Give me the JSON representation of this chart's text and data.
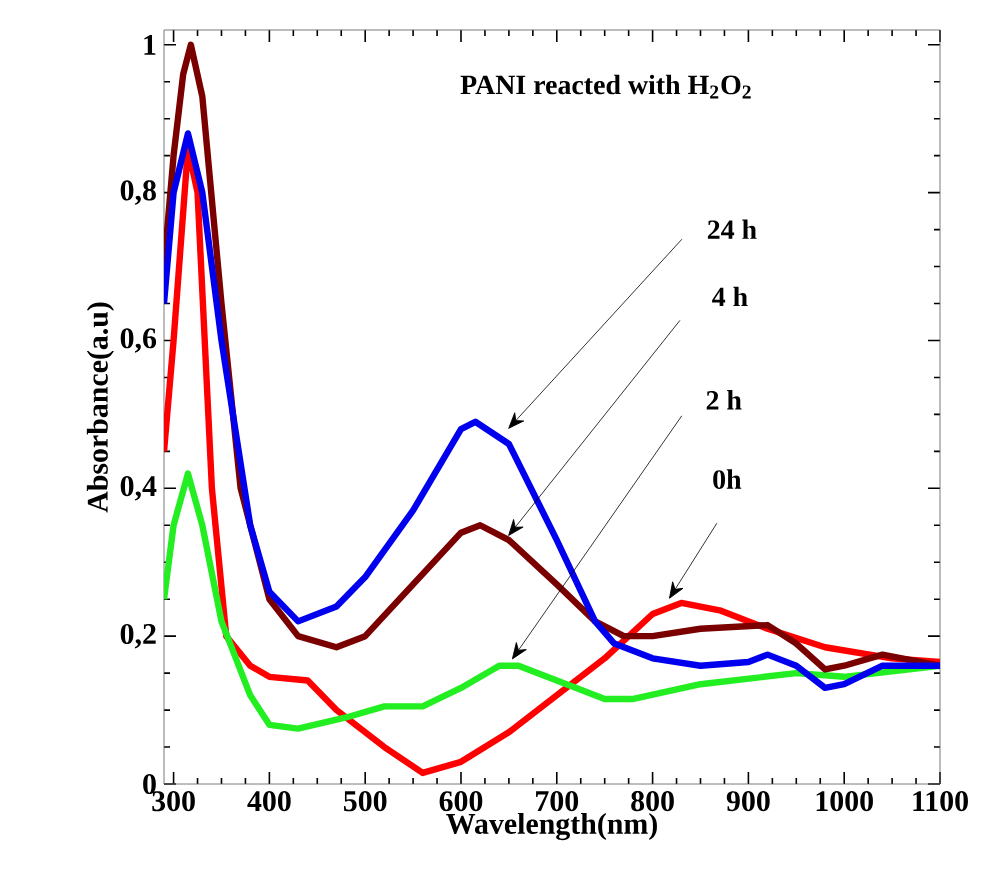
{
  "chart_data": {
    "type": "line",
    "title": "PANI reacted with H$_{2}$O$_{2}$",
    "xlabel": "Wavelength(nm)",
    "ylabel": "Absorbance(a.u)",
    "xlim": [
      290,
      1100
    ],
    "ylim": [
      0,
      1.02
    ],
    "xticks": [
      300,
      400,
      500,
      600,
      700,
      800,
      900,
      1000,
      1100
    ],
    "yticks": [
      0,
      {
        "value": 0.2,
        "label": "0,2"
      },
      {
        "value": 0.4,
        "label": "0,4"
      },
      {
        "value": 0.6,
        "label": "0,6"
      },
      {
        "value": 0.8,
        "label": "0,8"
      },
      1
    ],
    "marker": "none",
    "line_style": "solid",
    "series": [
      {
        "color": "#ff0000",
        "x": [
          290,
          300,
          315,
          325,
          340,
          355,
          380,
          400,
          440,
          470,
          520,
          560,
          600,
          650,
          700,
          750,
          800,
          830,
          870,
          920,
          980,
          1050,
          1100
        ],
        "values": [
          0.45,
          0.6,
          0.86,
          0.8,
          0.4,
          0.2,
          0.16,
          0.145,
          0.14,
          0.1,
          0.05,
          0.015,
          0.03,
          0.07,
          0.12,
          0.17,
          0.23,
          0.245,
          0.235,
          0.21,
          0.185,
          0.17,
          0.165
        ]
      },
      {
        "color": "#22ee22",
        "x": [
          290,
          300,
          315,
          330,
          350,
          380,
          400,
          430,
          480,
          520,
          560,
          600,
          640,
          660,
          700,
          750,
          780,
          850,
          950,
          1000,
          1100
        ],
        "values": [
          0.25,
          0.35,
          0.42,
          0.35,
          0.22,
          0.12,
          0.08,
          0.075,
          0.09,
          0.105,
          0.105,
          0.13,
          0.16,
          0.16,
          0.14,
          0.115,
          0.115,
          0.135,
          0.15,
          0.145,
          0.16
        ]
      },
      {
        "color": "#7a0000",
        "x": [
          290,
          300,
          310,
          318,
          330,
          350,
          370,
          400,
          430,
          470,
          500,
          550,
          600,
          620,
          650,
          700,
          740,
          770,
          800,
          850,
          920,
          950,
          980,
          1000,
          1040,
          1100
        ],
        "values": [
          0.7,
          0.85,
          0.96,
          1.0,
          0.93,
          0.65,
          0.4,
          0.25,
          0.2,
          0.185,
          0.2,
          0.27,
          0.34,
          0.35,
          0.33,
          0.27,
          0.22,
          0.2,
          0.2,
          0.21,
          0.215,
          0.19,
          0.155,
          0.16,
          0.175,
          0.16
        ]
      },
      {
        "color": "#0000ee",
        "x": [
          290,
          300,
          315,
          330,
          350,
          380,
          400,
          430,
          470,
          500,
          550,
          600,
          615,
          650,
          700,
          740,
          760,
          800,
          850,
          900,
          920,
          950,
          980,
          1000,
          1040,
          1100
        ],
        "values": [
          0.65,
          0.8,
          0.88,
          0.8,
          0.6,
          0.35,
          0.26,
          0.22,
          0.24,
          0.28,
          0.37,
          0.48,
          0.49,
          0.46,
          0.33,
          0.22,
          0.19,
          0.17,
          0.16,
          0.165,
          0.175,
          0.16,
          0.13,
          0.135,
          0.16,
          0.16
        ]
      }
    ],
    "annotations": [
      {
        "text": "24 h",
        "x": 649,
        "y": 0.48
      },
      {
        "text": "4 h",
        "x": 649,
        "y": 0.335
      },
      {
        "text": "2 h",
        "x": 653,
        "y": 0.168
      },
      {
        "text": "0h",
        "x": 817,
        "y": 0.25
      }
    ]
  }
}
